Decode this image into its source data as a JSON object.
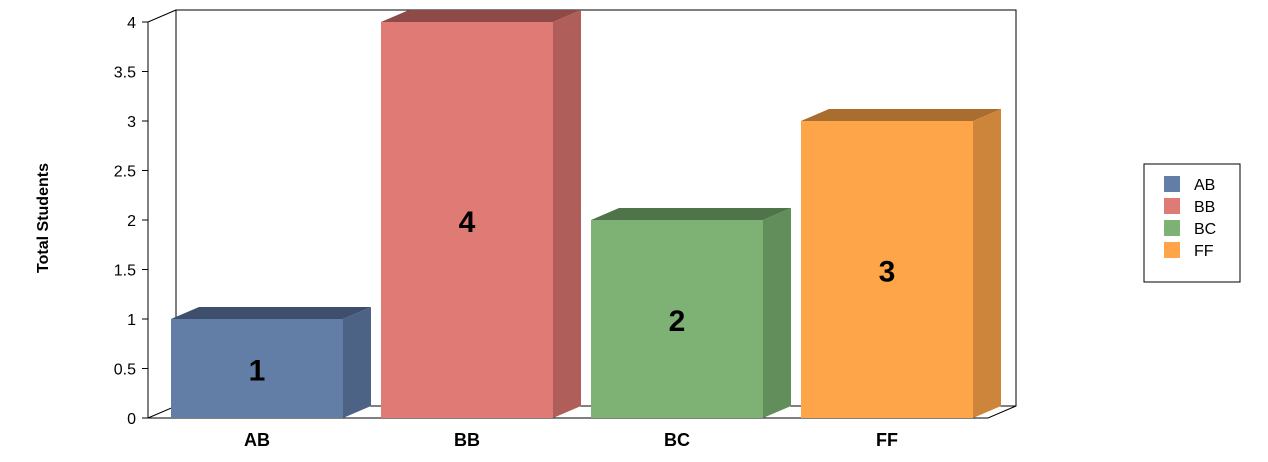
{
  "chart_data": {
    "type": "bar",
    "ylabel": "Total Students",
    "categories": [
      "AB",
      "BB",
      "BC",
      "FF"
    ],
    "values": [
      1,
      4,
      2,
      3
    ],
    "data_labels": [
      "1",
      "4",
      "2",
      "3"
    ],
    "ylim": [
      0,
      4
    ],
    "yticks": [
      "0",
      "0.5",
      "1",
      "1.5",
      "2",
      "2.5",
      "3",
      "3.5",
      "4"
    ],
    "legend": {
      "placement": "right",
      "entries": [
        "AB",
        "BB",
        "BC",
        "FF"
      ]
    },
    "colors": {
      "AB": {
        "front": "#627ea6",
        "side": "#4c6385",
        "top": "#3d4f6c"
      },
      "BB": {
        "front": "#e07a74",
        "side": "#b05e5a",
        "top": "#8e4a47"
      },
      "BC": {
        "front": "#7db274",
        "side": "#618e5a",
        "top": "#4f7449"
      },
      "FF": {
        "front": "#fea54a",
        "side": "#cd853b",
        "top": "#a96d2f"
      }
    },
    "three_d": true,
    "grid": false
  }
}
